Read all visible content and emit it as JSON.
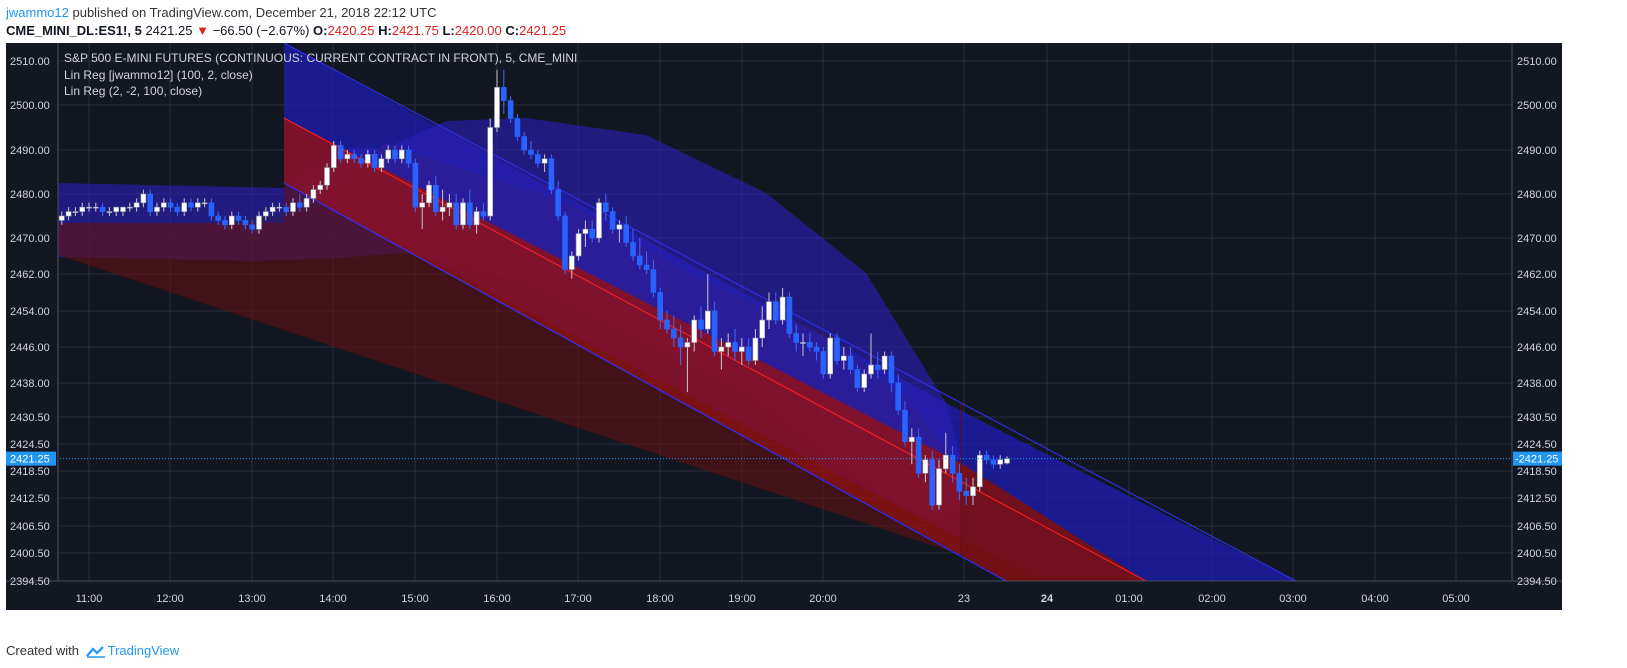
{
  "header": {
    "author": "jwammo12",
    "published_text": "published on TradingView.com, December 21, 2018 22:12 UTC"
  },
  "ticker": {
    "symbol": "CME_MINI_DL:ES1!, 5",
    "last": "2421.25",
    "change": "−66.50 (−2.67%)",
    "open_label": "O:",
    "open": "2420.25",
    "high_label": "H:",
    "high": "2421.75",
    "low_label": "L:",
    "low": "2420.00",
    "close_label": "C:",
    "close": "2421.25"
  },
  "footer": {
    "created_with": "Created with",
    "brand": "TradingView"
  },
  "colors": {
    "background": "#131722",
    "grid": "#2a2e39",
    "axis_text": "#d1d4dc",
    "up_candle": "#ffffff",
    "down_candle": "#2962ff",
    "blue_fill": "#1a1ac0",
    "red_fill": "#8b1010",
    "price_line": "#2196f3"
  },
  "chart_data": {
    "type": "candlestick",
    "title": "S&P 500 E-MINI FUTURES (CONTINUOUS: CURRENT CONTRACT IN FRONT), 5, CME_MINI",
    "legend": [
      "Lin Reg [jwammo12] (100, 2, close)",
      "Lin Reg (2, -2, 100, close)"
    ],
    "last_price_label": "2421.25",
    "y_ticks": [
      "2510.00",
      "2500.00",
      "2490.00",
      "2480.00",
      "2470.00",
      "2462.00",
      "2454.00",
      "2446.00",
      "2438.00",
      "2430.50",
      "2424.50",
      "2418.50",
      "2412.50",
      "2406.50",
      "2400.50",
      "2394.50"
    ],
    "x_ticks": [
      "11:00",
      "12:00",
      "13:00",
      "14:00",
      "15:00",
      "16:00",
      "17:00",
      "18:00",
      "19:00",
      "20:00",
      "23",
      "24",
      "01:00",
      "02:00",
      "03:00",
      "04:00",
      "05:00"
    ],
    "bold_x_ticks": [
      "24"
    ],
    "ylim": [
      2394.5,
      2511.5
    ],
    "candles": [
      {
        "t": "10:35",
        "o": 2473,
        "h": 2475,
        "l": 2471,
        "c": 2474
      },
      {
        "t": "10:40",
        "o": 2474,
        "h": 2476,
        "l": 2473,
        "c": 2475
      },
      {
        "t": "10:45",
        "o": 2475,
        "h": 2477,
        "l": 2474,
        "c": 2476
      },
      {
        "t": "10:50",
        "o": 2476,
        "h": 2477,
        "l": 2475,
        "c": 2476
      },
      {
        "t": "10:55",
        "o": 2476,
        "h": 2478,
        "l": 2475,
        "c": 2477
      },
      {
        "t": "11:00",
        "o": 2477,
        "h": 2478,
        "l": 2476,
        "c": 2477
      },
      {
        "t": "11:05",
        "o": 2477,
        "h": 2478,
        "l": 2476,
        "c": 2477
      },
      {
        "t": "11:10",
        "o": 2477,
        "h": 2478,
        "l": 2475,
        "c": 2476
      },
      {
        "t": "11:15",
        "o": 2476,
        "h": 2477,
        "l": 2475,
        "c": 2476
      },
      {
        "t": "11:20",
        "o": 2476,
        "h": 2477,
        "l": 2475,
        "c": 2477
      },
      {
        "t": "11:25",
        "o": 2476,
        "h": 2477,
        "l": 2475,
        "c": 2477
      },
      {
        "t": "11:30",
        "o": 2477,
        "h": 2478,
        "l": 2476,
        "c": 2477
      },
      {
        "t": "11:35",
        "o": 2477,
        "h": 2479,
        "l": 2476,
        "c": 2478
      },
      {
        "t": "11:40",
        "o": 2478,
        "h": 2481,
        "l": 2477,
        "c": 2480
      },
      {
        "t": "11:45",
        "o": 2480,
        "h": 2481,
        "l": 2475,
        "c": 2476
      },
      {
        "t": "11:50",
        "o": 2476,
        "h": 2478,
        "l": 2475,
        "c": 2477
      },
      {
        "t": "11:55",
        "o": 2477,
        "h": 2479,
        "l": 2476,
        "c": 2478
      },
      {
        "t": "12:00",
        "o": 2478,
        "h": 2479,
        "l": 2476,
        "c": 2477
      },
      {
        "t": "12:05",
        "o": 2477,
        "h": 2478,
        "l": 2475,
        "c": 2476
      },
      {
        "t": "12:10",
        "o": 2476,
        "h": 2479,
        "l": 2475,
        "c": 2478
      },
      {
        "t": "12:15",
        "o": 2478,
        "h": 2479,
        "l": 2476,
        "c": 2477
      },
      {
        "t": "12:20",
        "o": 2477,
        "h": 2479,
        "l": 2476,
        "c": 2478
      },
      {
        "t": "12:25",
        "o": 2478,
        "h": 2479,
        "l": 2477,
        "c": 2478
      },
      {
        "t": "12:30",
        "o": 2478,
        "h": 2479,
        "l": 2474,
        "c": 2475
      },
      {
        "t": "12:35",
        "o": 2475,
        "h": 2476,
        "l": 2473,
        "c": 2474
      },
      {
        "t": "12:40",
        "o": 2474,
        "h": 2475,
        "l": 2472,
        "c": 2473
      },
      {
        "t": "12:45",
        "o": 2473,
        "h": 2476,
        "l": 2472,
        "c": 2475
      },
      {
        "t": "12:50",
        "o": 2475,
        "h": 2476,
        "l": 2473,
        "c": 2474
      },
      {
        "t": "12:55",
        "o": 2474,
        "h": 2475,
        "l": 2472,
        "c": 2473
      },
      {
        "t": "13:00",
        "o": 2473,
        "h": 2474,
        "l": 2471,
        "c": 2472
      },
      {
        "t": "13:05",
        "o": 2472,
        "h": 2476,
        "l": 2471,
        "c": 2475
      },
      {
        "t": "13:10",
        "o": 2475,
        "h": 2477,
        "l": 2474,
        "c": 2476
      },
      {
        "t": "13:15",
        "o": 2476,
        "h": 2478,
        "l": 2475,
        "c": 2477
      },
      {
        "t": "13:20",
        "o": 2477,
        "h": 2478,
        "l": 2476,
        "c": 2477
      },
      {
        "t": "13:25",
        "o": 2477,
        "h": 2478,
        "l": 2475,
        "c": 2476
      },
      {
        "t": "13:30",
        "o": 2476,
        "h": 2479,
        "l": 2475,
        "c": 2478
      },
      {
        "t": "13:35",
        "o": 2478,
        "h": 2480,
        "l": 2476,
        "c": 2477
      },
      {
        "t": "13:40",
        "o": 2477,
        "h": 2480,
        "l": 2476,
        "c": 2479
      },
      {
        "t": "13:45",
        "o": 2479,
        "h": 2482,
        "l": 2478,
        "c": 2481
      },
      {
        "t": "13:50",
        "o": 2481,
        "h": 2483,
        "l": 2480,
        "c": 2482
      },
      {
        "t": "13:55",
        "o": 2482,
        "h": 2487,
        "l": 2481,
        "c": 2486
      },
      {
        "t": "14:00",
        "o": 2486,
        "h": 2492,
        "l": 2485,
        "c": 2491
      },
      {
        "t": "14:05",
        "o": 2491,
        "h": 2492,
        "l": 2487,
        "c": 2488
      },
      {
        "t": "14:10",
        "o": 2488,
        "h": 2490,
        "l": 2487,
        "c": 2489
      },
      {
        "t": "14:15",
        "o": 2489,
        "h": 2490,
        "l": 2487,
        "c": 2488
      },
      {
        "t": "14:20",
        "o": 2488,
        "h": 2489,
        "l": 2486,
        "c": 2487
      },
      {
        "t": "14:25",
        "o": 2487,
        "h": 2490,
        "l": 2486,
        "c": 2489
      },
      {
        "t": "14:30",
        "o": 2489,
        "h": 2490,
        "l": 2485,
        "c": 2486
      },
      {
        "t": "14:35",
        "o": 2486,
        "h": 2489,
        "l": 2485,
        "c": 2488
      },
      {
        "t": "14:40",
        "o": 2488,
        "h": 2491,
        "l": 2487,
        "c": 2490
      },
      {
        "t": "14:45",
        "o": 2490,
        "h": 2491,
        "l": 2487,
        "c": 2488
      },
      {
        "t": "14:50",
        "o": 2488,
        "h": 2491,
        "l": 2487,
        "c": 2490
      },
      {
        "t": "14:55",
        "o": 2490,
        "h": 2491,
        "l": 2486,
        "c": 2487
      },
      {
        "t": "15:00",
        "o": 2487,
        "h": 2488,
        "l": 2476,
        "c": 2477
      },
      {
        "t": "15:05",
        "o": 2477,
        "h": 2480,
        "l": 2472,
        "c": 2478
      },
      {
        "t": "15:10",
        "o": 2478,
        "h": 2483,
        "l": 2477,
        "c": 2482
      },
      {
        "t": "15:15",
        "o": 2482,
        "h": 2484,
        "l": 2475,
        "c": 2476
      },
      {
        "t": "15:20",
        "o": 2476,
        "h": 2481,
        "l": 2474,
        "c": 2477
      },
      {
        "t": "15:25",
        "o": 2477,
        "h": 2480,
        "l": 2475,
        "c": 2478
      },
      {
        "t": "15:30",
        "o": 2478,
        "h": 2480,
        "l": 2472,
        "c": 2473
      },
      {
        "t": "15:35",
        "o": 2473,
        "h": 2479,
        "l": 2472,
        "c": 2478
      },
      {
        "t": "15:40",
        "o": 2478,
        "h": 2481,
        "l": 2472,
        "c": 2473
      },
      {
        "t": "15:45",
        "o": 2473,
        "h": 2477,
        "l": 2471,
        "c": 2476
      },
      {
        "t": "15:50",
        "o": 2476,
        "h": 2478,
        "l": 2474,
        "c": 2475
      },
      {
        "t": "15:55",
        "o": 2475,
        "h": 2497,
        "l": 2474,
        "c": 2495
      },
      {
        "t": "16:00",
        "o": 2495,
        "h": 2508,
        "l": 2494,
        "c": 2504
      },
      {
        "t": "16:05",
        "o": 2504,
        "h": 2508,
        "l": 2498,
        "c": 2501
      },
      {
        "t": "16:10",
        "o": 2501,
        "h": 2502,
        "l": 2496,
        "c": 2497
      },
      {
        "t": "16:15",
        "o": 2497,
        "h": 2498,
        "l": 2492,
        "c": 2493
      },
      {
        "t": "16:20",
        "o": 2493,
        "h": 2494,
        "l": 2489,
        "c": 2490
      },
      {
        "t": "16:25",
        "o": 2490,
        "h": 2492,
        "l": 2488,
        "c": 2489
      },
      {
        "t": "16:30",
        "o": 2489,
        "h": 2490,
        "l": 2486,
        "c": 2487
      },
      {
        "t": "16:35",
        "o": 2487,
        "h": 2489,
        "l": 2485,
        "c": 2488
      },
      {
        "t": "16:40",
        "o": 2488,
        "h": 2489,
        "l": 2480,
        "c": 2481
      },
      {
        "t": "16:45",
        "o": 2481,
        "h": 2483,
        "l": 2474,
        "c": 2475
      },
      {
        "t": "16:50",
        "o": 2475,
        "h": 2476,
        "l": 2462,
        "c": 2463
      },
      {
        "t": "16:55",
        "o": 2463,
        "h": 2467,
        "l": 2461,
        "c": 2466
      },
      {
        "t": "17:00",
        "o": 2466,
        "h": 2472,
        "l": 2465,
        "c": 2471
      },
      {
        "t": "17:05",
        "o": 2471,
        "h": 2474,
        "l": 2468,
        "c": 2472
      },
      {
        "t": "17:10",
        "o": 2472,
        "h": 2474,
        "l": 2469,
        "c": 2470
      },
      {
        "t": "17:15",
        "o": 2470,
        "h": 2479,
        "l": 2469,
        "c": 2478
      },
      {
        "t": "17:20",
        "o": 2478,
        "h": 2480,
        "l": 2474,
        "c": 2476
      },
      {
        "t": "17:25",
        "o": 2476,
        "h": 2477,
        "l": 2471,
        "c": 2472
      },
      {
        "t": "17:30",
        "o": 2472,
        "h": 2474,
        "l": 2469,
        "c": 2473
      },
      {
        "t": "17:35",
        "o": 2473,
        "h": 2475,
        "l": 2468,
        "c": 2469
      },
      {
        "t": "17:40",
        "o": 2469,
        "h": 2472,
        "l": 2465,
        "c": 2466
      },
      {
        "t": "17:45",
        "o": 2466,
        "h": 2470,
        "l": 2463,
        "c": 2464
      },
      {
        "t": "17:50",
        "o": 2464,
        "h": 2467,
        "l": 2462,
        "c": 2463
      },
      {
        "t": "17:55",
        "o": 2463,
        "h": 2465,
        "l": 2457,
        "c": 2458
      },
      {
        "t": "18:00",
        "o": 2458,
        "h": 2459,
        "l": 2450,
        "c": 2452
      },
      {
        "t": "18:05",
        "o": 2452,
        "h": 2454,
        "l": 2449,
        "c": 2450
      },
      {
        "t": "18:10",
        "o": 2450,
        "h": 2453,
        "l": 2446,
        "c": 2448
      },
      {
        "t": "18:15",
        "o": 2448,
        "h": 2451,
        "l": 2442,
        "c": 2446
      },
      {
        "t": "18:20",
        "o": 2446,
        "h": 2448,
        "l": 2436,
        "c": 2447
      },
      {
        "t": "18:25",
        "o": 2447,
        "h": 2453,
        "l": 2445,
        "c": 2452
      },
      {
        "t": "18:30",
        "o": 2452,
        "h": 2455,
        "l": 2448,
        "c": 2450
      },
      {
        "t": "18:35",
        "o": 2450,
        "h": 2462,
        "l": 2449,
        "c": 2454
      },
      {
        "t": "18:40",
        "o": 2454,
        "h": 2456,
        "l": 2444,
        "c": 2445
      },
      {
        "t": "18:45",
        "o": 2445,
        "h": 2448,
        "l": 2441,
        "c": 2446
      },
      {
        "t": "18:50",
        "o": 2446,
        "h": 2449,
        "l": 2444,
        "c": 2447
      },
      {
        "t": "18:55",
        "o": 2447,
        "h": 2450,
        "l": 2443,
        "c": 2445
      },
      {
        "t": "19:00",
        "o": 2445,
        "h": 2448,
        "l": 2442,
        "c": 2446
      },
      {
        "t": "19:05",
        "o": 2446,
        "h": 2448,
        "l": 2442,
        "c": 2443
      },
      {
        "t": "19:10",
        "o": 2443,
        "h": 2450,
        "l": 2442,
        "c": 2448
      },
      {
        "t": "19:15",
        "o": 2448,
        "h": 2455,
        "l": 2446,
        "c": 2452
      },
      {
        "t": "19:20",
        "o": 2452,
        "h": 2458,
        "l": 2450,
        "c": 2456
      },
      {
        "t": "19:25",
        "o": 2456,
        "h": 2458,
        "l": 2451,
        "c": 2452
      },
      {
        "t": "19:30",
        "o": 2452,
        "h": 2459,
        "l": 2451,
        "c": 2457
      },
      {
        "t": "19:35",
        "o": 2457,
        "h": 2458,
        "l": 2448,
        "c": 2449
      },
      {
        "t": "19:40",
        "o": 2449,
        "h": 2451,
        "l": 2445,
        "c": 2447
      },
      {
        "t": "19:45",
        "o": 2447,
        "h": 2449,
        "l": 2444,
        "c": 2447
      },
      {
        "t": "19:50",
        "o": 2447,
        "h": 2449,
        "l": 2445,
        "c": 2446
      },
      {
        "t": "19:55",
        "o": 2446,
        "h": 2447,
        "l": 2443,
        "c": 2445
      },
      {
        "t": "20:00",
        "o": 2445,
        "h": 2446,
        "l": 2439,
        "c": 2440
      },
      {
        "t": "20:05",
        "o": 2440,
        "h": 2449,
        "l": 2439,
        "c": 2448
      },
      {
        "t": "20:10",
        "o": 2448,
        "h": 2449,
        "l": 2442,
        "c": 2443
      },
      {
        "t": "20:15",
        "o": 2443,
        "h": 2446,
        "l": 2441,
        "c": 2444
      },
      {
        "t": "20:20",
        "o": 2444,
        "h": 2446,
        "l": 2440,
        "c": 2441
      },
      {
        "t": "20:25",
        "o": 2441,
        "h": 2442,
        "l": 2436,
        "c": 2437
      },
      {
        "t": "20:30",
        "o": 2437,
        "h": 2441,
        "l": 2436,
        "c": 2440
      },
      {
        "t": "20:35",
        "o": 2440,
        "h": 2449,
        "l": 2439,
        "c": 2442
      },
      {
        "t": "20:40",
        "o": 2442,
        "h": 2445,
        "l": 2439,
        "c": 2441
      },
      {
        "t": "20:45",
        "o": 2441,
        "h": 2445,
        "l": 2440,
        "c": 2444
      },
      {
        "t": "20:50",
        "o": 2444,
        "h": 2445,
        "l": 2436,
        "c": 2438
      },
      {
        "t": "20:55",
        "o": 2438,
        "h": 2440,
        "l": 2431,
        "c": 2432
      },
      {
        "t": "21:00",
        "o": 2432,
        "h": 2434,
        "l": 2424,
        "c": 2425
      },
      {
        "t": "21:05",
        "o": 2425,
        "h": 2428,
        "l": 2420,
        "c": 2426
      },
      {
        "t": "21:10",
        "o": 2426,
        "h": 2428,
        "l": 2417,
        "c": 2418
      },
      {
        "t": "21:15",
        "o": 2418,
        "h": 2422,
        "l": 2416,
        "c": 2421
      },
      {
        "t": "21:20",
        "o": 2421,
        "h": 2423,
        "l": 2410,
        "c": 2411
      },
      {
        "t": "21:25",
        "o": 2411,
        "h": 2421,
        "l": 2410,
        "c": 2419
      },
      {
        "t": "21:30",
        "o": 2419,
        "h": 2427,
        "l": 2418,
        "c": 2422
      },
      {
        "t": "21:35",
        "o": 2422,
        "h": 2424,
        "l": 2416,
        "c": 2418
      },
      {
        "t": "21:40",
        "o": 2418,
        "h": 2420,
        "l": 2412,
        "c": 2414
      },
      {
        "t": "21:45",
        "o": 2414,
        "h": 2417,
        "l": 2411,
        "c": 2413
      },
      {
        "t": "21:50",
        "o": 2413,
        "h": 2417,
        "l": 2411,
        "c": 2415
      },
      {
        "t": "21:55",
        "o": 2415,
        "h": 2423,
        "l": 2414,
        "c": 2422
      },
      {
        "t": "22:00",
        "o": 2422,
        "h": 2423,
        "l": 2420,
        "c": 2421
      },
      {
        "t": "22:05",
        "o": 2421,
        "h": 2422,
        "l": 2419,
        "c": 2420
      },
      {
        "t": "22:10",
        "o": 2420,
        "h": 2422,
        "l": 2419,
        "c": 2421
      },
      {
        "t": "22:15",
        "o": 2420.25,
        "h": 2421.75,
        "l": 2420,
        "c": 2421.25
      }
    ]
  }
}
